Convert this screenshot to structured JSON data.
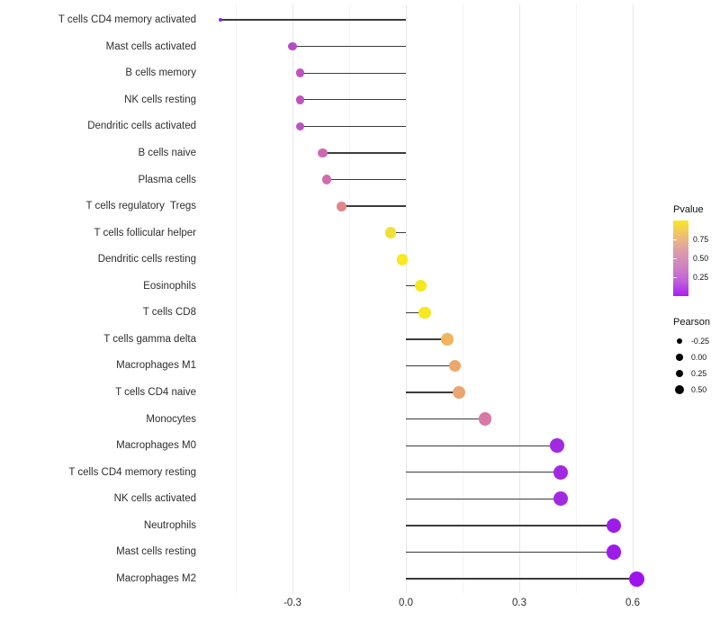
{
  "chart_data": {
    "type": "lollipop",
    "title": "",
    "xlabel": "",
    "ylabel": "",
    "x_axis": {
      "range": [
        -0.545,
        0.662
      ],
      "ticks": [
        -0.3,
        0.0,
        0.3,
        0.6
      ],
      "tick_labels": [
        "-0.3",
        "0.0",
        "0.3",
        "0.6"
      ],
      "minor_ticks": [
        -0.45,
        -0.15,
        0.15,
        0.45
      ]
    },
    "grid": "on",
    "legend_position": "right",
    "points": [
      {
        "label": "T cells CD4 memory activated",
        "pearson": -0.49,
        "color": "#8e24d8",
        "diameter": 4.2
      },
      {
        "label": "Mast cells activated",
        "pearson": -0.3,
        "color": "#b44bc6",
        "diameter": 9.4
      },
      {
        "label": "B cells memory",
        "pearson": -0.28,
        "color": "#bf53c0",
        "diameter": 9.7
      },
      {
        "label": "NK cells resting",
        "pearson": -0.28,
        "color": "#bd52c2",
        "diameter": 9.7
      },
      {
        "label": "Dendritic cells activated",
        "pearson": -0.28,
        "color": "#bd52c2",
        "diameter": 9.7
      },
      {
        "label": "B cells naive",
        "pearson": -0.22,
        "color": "#cd69b2",
        "diameter": 10.4
      },
      {
        "label": "Plasma cells",
        "pearson": -0.21,
        "color": "#d06dae",
        "diameter": 10.6
      },
      {
        "label": "T cells regulatory  Tregs",
        "pearson": -0.17,
        "color": "#e28689",
        "diameter": 11.0
      },
      {
        "label": "T cells follicular helper",
        "pearson": -0.04,
        "color": "#f3e035",
        "diameter": 12.3
      },
      {
        "label": "Dendritic cells resting",
        "pearson": -0.01,
        "color": "#f9e820",
        "diameter": 12.6
      },
      {
        "label": "Eosinophils",
        "pearson": 0.04,
        "color": "#f7e81c",
        "diameter": 13.0
      },
      {
        "label": "T cells CD8",
        "pearson": 0.05,
        "color": "#f6e71e",
        "diameter": 13.1
      },
      {
        "label": "T cells gamma delta",
        "pearson": 0.11,
        "color": "#f0b45f",
        "diameter": 13.6
      },
      {
        "label": "Macrophages M1",
        "pearson": 0.13,
        "color": "#eda76b",
        "diameter": 13.8
      },
      {
        "label": "T cells CD4 naive",
        "pearson": 0.14,
        "color": "#eba570",
        "diameter": 13.9
      },
      {
        "label": "Monocytes",
        "pearson": 0.21,
        "color": "#d877a8",
        "diameter": 14.4
      },
      {
        "label": "Macrophages M0",
        "pearson": 0.4,
        "color": "#a229e2",
        "diameter": 15.7
      },
      {
        "label": "T cells CD4 memory resting",
        "pearson": 0.41,
        "color": "#a229e2",
        "diameter": 15.8
      },
      {
        "label": "NK cells activated",
        "pearson": 0.41,
        "color": "#a229e2",
        "diameter": 15.8
      },
      {
        "label": "Neutrophils",
        "pearson": 0.55,
        "color": "#9d1cea",
        "diameter": 16.6
      },
      {
        "label": "Mast cells resting",
        "pearson": 0.55,
        "color": "#9d1cea",
        "diameter": 16.6
      },
      {
        "label": "Macrophages M2",
        "pearson": 0.61,
        "color": "#9e13ec",
        "diameter": 17.0
      }
    ],
    "legends": {
      "pvalue": {
        "title": "Pvalue",
        "tick_labels": [
          "0.75",
          "0.50",
          "0.25"
        ],
        "tick_values": [
          0.75,
          0.5,
          0.25
        ],
        "value_range": [
          0.0,
          1.0
        ],
        "gradient_top_to_bottom": [
          "#f9e721",
          "#eebf72",
          "#dd9daa",
          "#d083c0",
          "#c161d8",
          "#aa1ef2"
        ]
      },
      "pearson": {
        "title": "Pearson",
        "items": [
          {
            "label": "-0.25",
            "diameter": 6.0
          },
          {
            "label": "0.00",
            "diameter": 7.4
          },
          {
            "label": "0.25",
            "diameter": 8.6
          },
          {
            "label": "0.50",
            "diameter": 10.0
          }
        ]
      }
    },
    "colors": {
      "stem_line": "#3b3b3b",
      "grid_major": "#e8e8e8",
      "grid_minor": "#f4f4f4",
      "axis_text": "#2e2e2e",
      "background": "#ffffff"
    }
  }
}
